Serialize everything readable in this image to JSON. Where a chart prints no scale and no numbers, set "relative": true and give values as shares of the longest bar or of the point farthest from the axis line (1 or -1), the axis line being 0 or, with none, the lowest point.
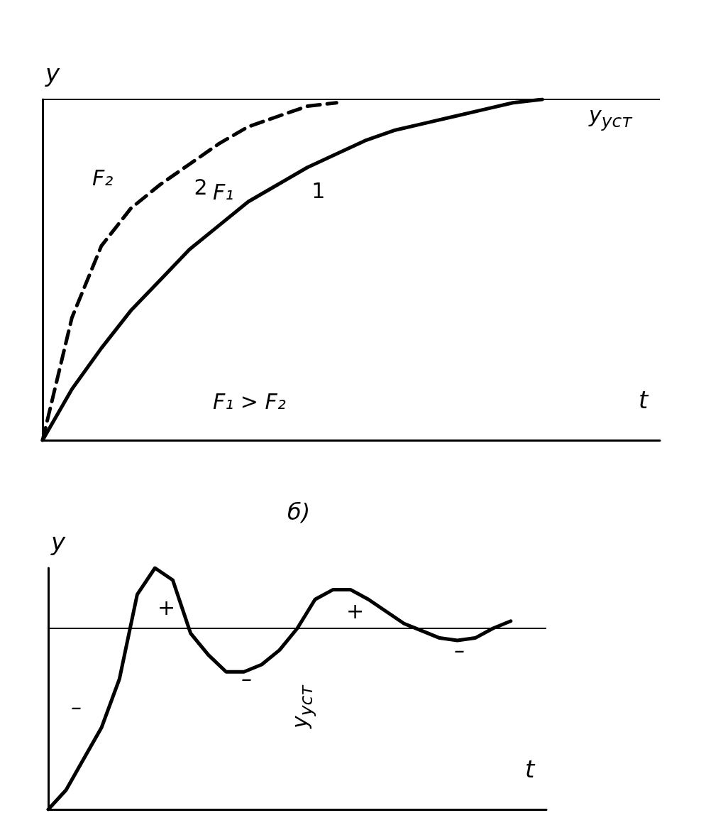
{
  "chart_data": [
    {
      "type": "line",
      "relative": true,
      "xlabel": "t",
      "ylabel": "y",
      "marker": "none",
      "grid": false,
      "categories": [
        null,
        null,
        null,
        null,
        null,
        null,
        null,
        null,
        null,
        null,
        null,
        null,
        null,
        null,
        null,
        null,
        null,
        null,
        null,
        null,
        null,
        null
      ],
      "series": [
        {
          "name": "1",
          "color": "#000000",
          "line_style": "solid",
          "values": [
            0,
            0.15,
            0.27,
            0.38,
            0.47,
            0.56,
            0.63,
            0.7,
            0.75,
            0.8,
            0.84,
            0.88,
            0.91,
            0.93,
            0.95,
            0.97,
            0.99,
            1.0,
            null,
            null,
            null,
            null
          ]
        },
        {
          "name": "2",
          "color": "#000000",
          "line_style": "dashed",
          "values": [
            0,
            0.36,
            0.57,
            0.68,
            0.75,
            0.81,
            0.87,
            0.92,
            0.95,
            0.98,
            0.99,
            null,
            null,
            null,
            null,
            null,
            null,
            null,
            null,
            null,
            null,
            null
          ]
        }
      ],
      "ref_lines": [
        {
          "axis": "y",
          "value": 1,
          "label": "y$_{уст}$"
        }
      ],
      "annotations": [
        "F₂",
        "F₁",
        "F₁ > F₂"
      ]
    },
    {
      "type": "line",
      "relative": true,
      "title": "б)",
      "xlabel": "t",
      "ylabel": "y",
      "marker": "none",
      "grid": false,
      "categories": [
        null,
        null,
        null,
        null,
        null,
        null,
        null,
        null,
        null,
        null,
        null,
        null,
        null,
        null,
        null,
        null,
        null,
        null,
        null,
        null,
        null,
        null,
        null,
        null,
        null,
        null,
        null,
        null,
        null
      ],
      "series": [
        {
          "color": "#000000",
          "values": [
            0,
            0.08,
            0.21,
            0.34,
            0.54,
            0.89,
            1.0,
            0.95,
            0.73,
            0.64,
            0.57,
            0.57,
            0.6,
            0.66,
            0.75,
            0.87,
            0.91,
            0.91,
            0.87,
            0.82,
            0.77,
            0.74,
            0.71,
            0.7,
            0.71,
            0.75,
            0.78,
            null,
            null
          ]
        }
      ],
      "ref_lines": [
        {
          "axis": "y",
          "value": 0.75,
          "label": "y$_{уст}$"
        }
      ],
      "annotations": [
        "–",
        "+",
        "–",
        "+",
        "–"
      ]
    }
  ]
}
